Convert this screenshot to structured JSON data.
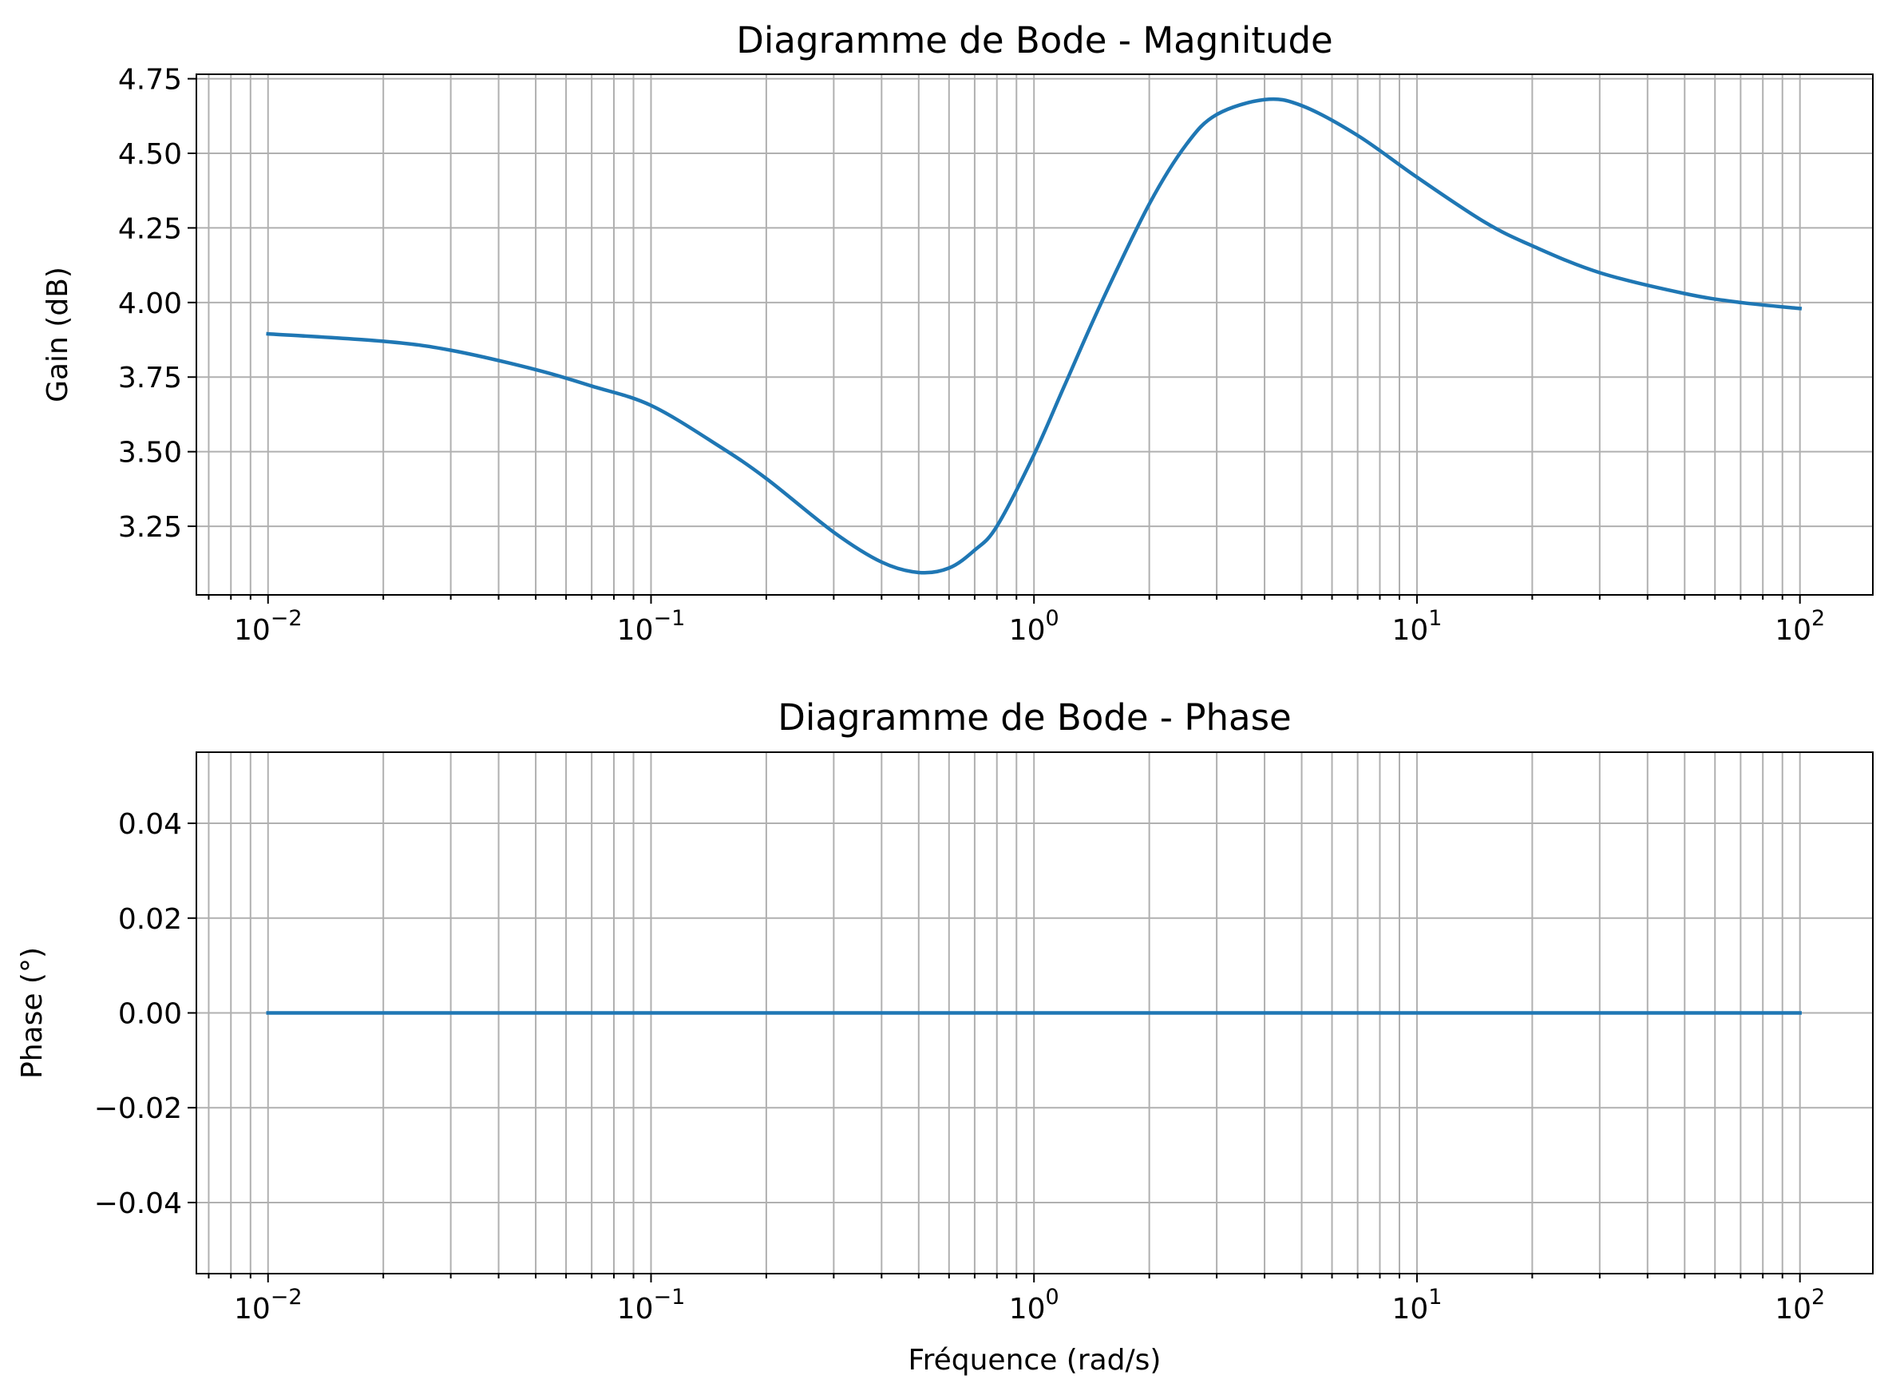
{
  "colors": {
    "line": "#1f77b4",
    "grid": "#b0b0b0",
    "axes": "#000000",
    "background": "#ffffff"
  },
  "chart_data": [
    {
      "type": "line",
      "title": "Diagramme de Bode - Magnitude",
      "xlabel": "",
      "ylabel": "Gain (dB)",
      "xscale": "log",
      "xlim": [
        0.0065,
        155
      ],
      "ylim": [
        3.02,
        4.765
      ],
      "grid": true,
      "legend": "none",
      "xticks": [
        0.01,
        0.1,
        1,
        10,
        100
      ],
      "xtick_labels": [
        {
          "base": "10",
          "exp": "−2"
        },
        {
          "base": "10",
          "exp": "−1"
        },
        {
          "base": "10",
          "exp": "0"
        },
        {
          "base": "10",
          "exp": "1"
        },
        {
          "base": "10",
          "exp": "2"
        }
      ],
      "yticks": [
        3.25,
        3.5,
        3.75,
        4.0,
        4.25,
        4.5,
        4.75
      ],
      "ytick_labels": [
        "3.25",
        "3.50",
        "3.75",
        "4.00",
        "4.25",
        "4.50",
        "4.75"
      ],
      "series": [
        {
          "x": [
            0.01,
            0.02,
            0.03,
            0.05,
            0.07,
            0.1,
            0.15,
            0.2,
            0.3,
            0.4,
            0.5,
            0.6,
            0.7,
            0.8,
            1.0,
            1.2,
            1.5,
            2.0,
            2.5,
            3.0,
            4.0,
            5.0,
            7.0,
            10.0,
            15.0,
            20.0,
            30.0,
            50.0,
            70.0,
            100.0
          ],
          "y": [
            3.895,
            3.87,
            3.84,
            3.775,
            3.72,
            3.655,
            3.52,
            3.41,
            3.23,
            3.13,
            3.095,
            3.11,
            3.17,
            3.25,
            3.49,
            3.72,
            4.0,
            4.33,
            4.53,
            4.63,
            4.68,
            4.66,
            4.56,
            4.42,
            4.27,
            4.19,
            4.1,
            4.03,
            4.0,
            3.98
          ]
        }
      ]
    },
    {
      "type": "line",
      "title": "Diagramme de Bode - Phase",
      "xlabel": "Fréquence (rad/s)",
      "ylabel": "Phase (°)",
      "xscale": "log",
      "xlim": [
        0.0065,
        155
      ],
      "ylim": [
        -0.055,
        0.055
      ],
      "grid": true,
      "legend": "none",
      "xticks": [
        0.01,
        0.1,
        1,
        10,
        100
      ],
      "xtick_labels": [
        {
          "base": "10",
          "exp": "−2"
        },
        {
          "base": "10",
          "exp": "−1"
        },
        {
          "base": "10",
          "exp": "0"
        },
        {
          "base": "10",
          "exp": "1"
        },
        {
          "base": "10",
          "exp": "2"
        }
      ],
      "yticks": [
        -0.04,
        -0.02,
        0.0,
        0.02,
        0.04
      ],
      "ytick_labels": [
        "−0.04",
        "−0.02",
        "0.00",
        "0.02",
        "0.04"
      ],
      "series": [
        {
          "x": [
            0.01,
            0.1,
            1.0,
            10.0,
            100.0
          ],
          "y": [
            0.0,
            0.0,
            0.0,
            0.0,
            0.0
          ]
        }
      ]
    }
  ]
}
